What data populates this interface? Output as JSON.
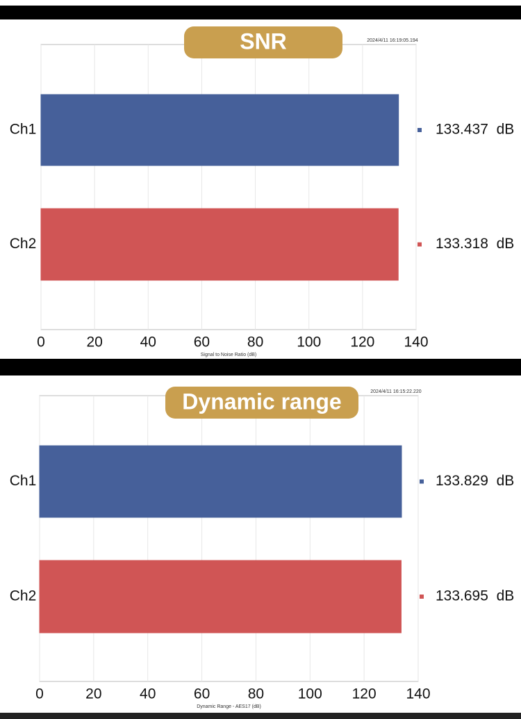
{
  "chart_data": [
    {
      "type": "bar",
      "orientation": "horizontal",
      "title": "SNR",
      "timestamp": "2024/4/11 16:19:05.194",
      "x_label": "Signal to Noise Ratio (dB)",
      "categories": [
        "Ch1",
        "Ch2"
      ],
      "values": [
        133.437,
        133.318
      ],
      "value_labels": [
        "133.437  dB",
        "133.318  dB"
      ],
      "colors": [
        "#46609a",
        "#d05555"
      ],
      "xlim": [
        0,
        140
      ],
      "xticks": [
        0,
        20,
        40,
        60,
        80,
        100,
        120,
        140
      ],
      "grid": true
    },
    {
      "type": "bar",
      "orientation": "horizontal",
      "title": "Dynamic range",
      "timestamp": "2024/4/11 16:15:22.220",
      "x_label": "Dynamic Range - AES17 (dB)",
      "categories": [
        "Ch1",
        "Ch2"
      ],
      "values": [
        133.829,
        133.695
      ],
      "value_labels": [
        "133.829  dB",
        "133.695  dB"
      ],
      "colors": [
        "#46609a",
        "#d05555"
      ],
      "xlim": [
        0,
        140
      ],
      "xticks": [
        0,
        20,
        40,
        60,
        80,
        100,
        120,
        140
      ],
      "grid": true
    }
  ]
}
